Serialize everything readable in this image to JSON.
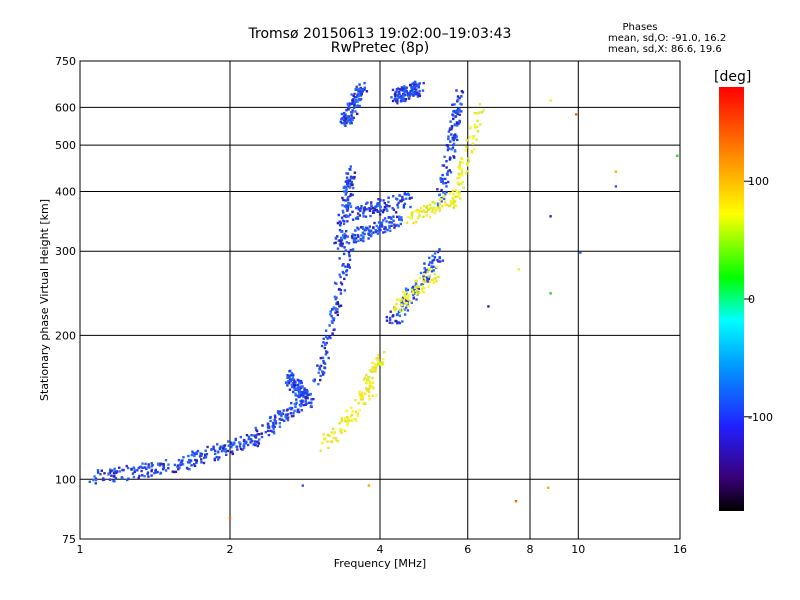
{
  "window": {
    "title": "Tromsø 20150613 19:02:00–19:03:43",
    "subtitle": "RwPretec (8p)"
  },
  "stats": {
    "header": "Phases",
    "o_mode": "mean, sd,O: -91.0, 16.2",
    "x_mode": "mean, sd,X: 86.6, 19.6"
  },
  "colorbar": {
    "units": "[deg]",
    "ticks": [
      "100",
      "0",
      "-100"
    ],
    "tick_values": [
      100,
      0,
      -100
    ],
    "range": [
      -180,
      180
    ]
  },
  "chart_data": {
    "type": "scatter",
    "xlabel": "Frequency [MHz]",
    "ylabel": "Stationary phase Virtual Height [km]",
    "x_scale": "log",
    "y_scale": "log",
    "xlim": [
      1,
      16
    ],
    "ylim": [
      75,
      750
    ],
    "x_ticks": [
      1,
      2,
      4,
      6,
      8,
      10,
      16
    ],
    "x_tick_labels": [
      "1",
      "2",
      "4",
      "6",
      "8",
      "10",
      "16"
    ],
    "y_ticks": [
      75,
      100,
      200,
      300,
      400,
      500,
      600,
      750
    ],
    "y_tick_labels": [
      "75",
      "100",
      "200",
      "300",
      "400",
      "500",
      "600",
      "750"
    ],
    "grid": true,
    "series": [
      {
        "mode": "O",
        "color": "#2255ee",
        "segments": [
          {
            "from": [
              1.05,
              100
            ],
            "to": [
              1.6,
              108
            ]
          },
          {
            "from": [
              1.6,
              108
            ],
            "to": [
              2.2,
              120
            ]
          },
          {
            "from": [
              2.2,
              120
            ],
            "to": [
              2.8,
              145
            ]
          },
          {
            "from": [
              2.6,
              165
            ],
            "to": [
              2.9,
              145
            ]
          },
          {
            "from": [
              3.0,
              158
            ],
            "to": [
              3.5,
              325
            ]
          },
          {
            "from": [
              3.3,
              300
            ],
            "to": [
              3.5,
              440
            ]
          },
          {
            "from": [
              3.45,
              360
            ],
            "to": [
              4.6,
              385
            ]
          },
          {
            "from": [
              3.5,
              320
            ],
            "to": [
              4.4,
              350
            ]
          },
          {
            "from": [
              3.4,
              560
            ],
            "to": [
              3.7,
              660
            ]
          },
          {
            "from": [
              4.3,
              630
            ],
            "to": [
              4.8,
              660
            ]
          },
          {
            "from": [
              4.2,
              210
            ],
            "to": [
              5.3,
              300
            ]
          },
          {
            "from": [
              5.3,
              380
            ],
            "to": [
              5.8,
              650
            ]
          }
        ]
      },
      {
        "mode": "X",
        "color": "#eeee22",
        "segments": [
          {
            "from": [
              3.1,
              118
            ],
            "to": [
              3.9,
              155
            ]
          },
          {
            "from": [
              3.7,
              150
            ],
            "to": [
              4.0,
              180
            ]
          },
          {
            "from": [
              4.3,
              230
            ],
            "to": [
              5.2,
              270
            ]
          },
          {
            "from": [
              4.5,
              350
            ],
            "to": [
              5.8,
              390
            ]
          },
          {
            "from": [
              5.6,
              380
            ],
            "to": [
              6.4,
              600
            ]
          }
        ]
      },
      {
        "mode": "scattered",
        "points": [
          [
            7.5,
            90
          ],
          [
            8.7,
            96
          ],
          [
            10.1,
            298
          ],
          [
            8.8,
            245
          ],
          [
            8.8,
            355
          ],
          [
            8.8,
            620
          ],
          [
            9.9,
            580
          ],
          [
            11.9,
            440
          ],
          [
            11.9,
            410
          ],
          [
            15.8,
            475
          ],
          [
            6.6,
            230
          ],
          [
            7.6,
            275
          ],
          [
            2.0,
            83
          ],
          [
            3.8,
            97
          ],
          [
            2.8,
            97
          ]
        ]
      }
    ]
  }
}
